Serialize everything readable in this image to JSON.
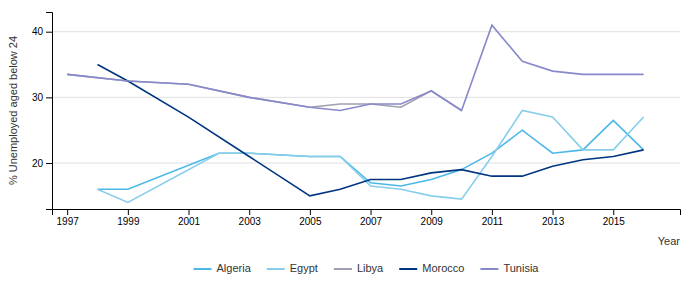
{
  "chart_data": {
    "type": "line",
    "xlabel": "Year",
    "ylabel": "% Unemployed aged below 24",
    "xlim": [
      1996.5,
      2017.2
    ],
    "ylim": [
      13,
      43
    ],
    "xticks": [
      1997,
      1999,
      2001,
      2003,
      2005,
      2007,
      2009,
      2011,
      2013,
      2015
    ],
    "yticks": [
      20,
      30,
      40
    ],
    "grid": true,
    "legend": "bottom",
    "series": [
      {
        "name": "Algeria",
        "color": "#4db8e8",
        "x": [
          1998,
          1999,
          2002,
          2003,
          2005,
          2006,
          2007,
          2008,
          2009,
          2010,
          2011,
          2012,
          2013,
          2014,
          2015,
          2016
        ],
        "values": [
          16.0,
          16.0,
          21.5,
          21.5,
          21.0,
          21.0,
          17.0,
          16.5,
          17.5,
          19.0,
          21.5,
          25.0,
          21.5,
          22.0,
          26.5,
          22.0
        ]
      },
      {
        "name": "Egypt",
        "color": "#87ceeb",
        "x": [
          1998,
          1999,
          2002,
          2003,
          2005,
          2006,
          2007,
          2008,
          2009,
          2010,
          2011,
          2012,
          2013,
          2014,
          2015,
          2016
        ],
        "values": [
          16.0,
          14.0,
          21.5,
          21.5,
          21.0,
          21.0,
          16.5,
          16.0,
          15.0,
          14.5,
          21.0,
          28.0,
          27.0,
          22.0,
          22.0,
          27.0
        ]
      },
      {
        "name": "Libya",
        "color": "#a0a0b0",
        "x": [
          1997,
          1999,
          2001,
          2003,
          2005,
          2006,
          2007,
          2008,
          2009,
          2010
        ],
        "values": [
          33.5,
          32.5,
          32.0,
          30.0,
          28.5,
          29.0,
          29.0,
          28.5,
          31.0,
          28.0
        ]
      },
      {
        "name": "Morocco",
        "color": "#003580",
        "x": [
          1998,
          1999,
          2001,
          2003,
          2005,
          2006,
          2007,
          2008,
          2009,
          2010,
          2011,
          2012,
          2013,
          2014,
          2015,
          2016
        ],
        "values": [
          35.0,
          32.5,
          27.0,
          21.0,
          15.0,
          16.0,
          17.5,
          17.5,
          18.5,
          19.0,
          18.0,
          18.0,
          19.5,
          20.5,
          21.0,
          22.0
        ]
      },
      {
        "name": "Tunisia",
        "color": "#8888cc",
        "x": [
          1997,
          1999,
          2001,
          2003,
          2005,
          2006,
          2007,
          2008,
          2009,
          2010,
          2011,
          2012,
          2013,
          2014,
          2015,
          2016
        ],
        "values": [
          33.5,
          32.5,
          32.0,
          30.0,
          28.5,
          28.0,
          29.0,
          29.0,
          31.0,
          28.0,
          41.0,
          35.5,
          34.0,
          33.5,
          33.5,
          33.5
        ]
      }
    ]
  }
}
